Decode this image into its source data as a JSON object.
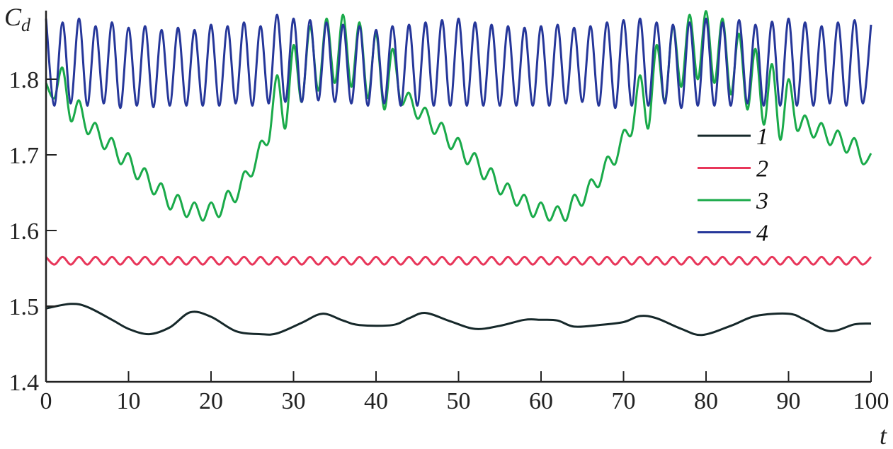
{
  "chart_data": {
    "type": "line",
    "title": "",
    "xlabel": "t",
    "ylabel": "C_d",
    "ylabel_main": "C",
    "ylabel_sub": "d",
    "xlim": [
      0,
      100
    ],
    "ylim": [
      1.4,
      1.89
    ],
    "xticks": [
      "0",
      "10",
      "20",
      "30",
      "40",
      "50",
      "60",
      "70",
      "80",
      "90",
      "100"
    ],
    "yticks": [
      "1.4",
      "1.5",
      "1.6",
      "1.7",
      "1.8"
    ],
    "grid": false,
    "legend_placement": "right",
    "series": [
      {
        "name": "1",
        "color": "#16282a",
        "x": [
          0,
          3,
          5,
          8,
          10,
          12.5,
          15,
          17.5,
          20,
          23,
          26,
          28,
          31,
          33.5,
          36,
          38,
          42,
          44,
          46,
          49,
          52,
          55,
          58,
          60,
          62,
          64,
          67,
          70,
          72,
          74,
          77,
          79.5,
          83,
          86,
          90,
          92,
          95,
          98,
          100
        ],
        "y": [
          1.497,
          1.503,
          1.499,
          1.482,
          1.47,
          1.463,
          1.472,
          1.492,
          1.486,
          1.467,
          1.463,
          1.464,
          1.478,
          1.49,
          1.481,
          1.475,
          1.475,
          1.484,
          1.491,
          1.48,
          1.47,
          1.474,
          1.482,
          1.482,
          1.481,
          1.473,
          1.475,
          1.479,
          1.487,
          1.484,
          1.47,
          1.462,
          1.474,
          1.487,
          1.49,
          1.482,
          1.467,
          1.476,
          1.477
        ]
      },
      {
        "name": "2",
        "color": "#e8365a",
        "x_start": 0,
        "x_step": 1,
        "y": [
          1.565,
          1.555,
          1.565,
          1.555,
          1.565,
          1.555,
          1.565,
          1.555,
          1.565,
          1.555,
          1.565,
          1.555,
          1.565,
          1.555,
          1.565,
          1.555,
          1.565,
          1.555,
          1.565,
          1.555,
          1.565,
          1.555,
          1.565,
          1.555,
          1.565,
          1.555,
          1.565,
          1.555,
          1.565,
          1.555,
          1.565,
          1.555,
          1.565,
          1.555,
          1.565,
          1.555,
          1.565,
          1.555,
          1.565,
          1.555,
          1.565,
          1.555,
          1.565,
          1.555,
          1.565,
          1.555,
          1.565,
          1.555,
          1.565,
          1.555,
          1.565,
          1.555,
          1.565,
          1.555,
          1.565,
          1.555,
          1.565,
          1.555,
          1.565,
          1.555,
          1.565,
          1.555,
          1.565,
          1.555,
          1.565,
          1.555,
          1.565,
          1.555,
          1.565,
          1.555,
          1.565,
          1.555,
          1.565,
          1.555,
          1.565,
          1.555,
          1.565,
          1.555,
          1.565,
          1.555,
          1.565,
          1.555,
          1.565,
          1.555,
          1.565,
          1.555,
          1.565,
          1.555,
          1.565,
          1.555,
          1.565,
          1.555,
          1.565,
          1.555,
          1.565,
          1.555,
          1.565,
          1.555,
          1.565,
          1.555,
          1.565
        ]
      },
      {
        "name": "3",
        "color": "#1aaa4a",
        "x_start": 0,
        "x_step": 1,
        "y": [
          1.795,
          1.775,
          1.815,
          1.745,
          1.772,
          1.728,
          1.742,
          1.708,
          1.722,
          1.688,
          1.702,
          1.668,
          1.682,
          1.648,
          1.662,
          1.628,
          1.647,
          1.618,
          1.637,
          1.613,
          1.637,
          1.618,
          1.652,
          1.638,
          1.677,
          1.673,
          1.717,
          1.718,
          1.805,
          1.735,
          1.845,
          1.77,
          1.87,
          1.785,
          1.88,
          1.795,
          1.885,
          1.79,
          1.875,
          1.775,
          1.86,
          1.76,
          1.84,
          1.768,
          1.782,
          1.748,
          1.762,
          1.728,
          1.742,
          1.708,
          1.722,
          1.688,
          1.702,
          1.668,
          1.682,
          1.648,
          1.662,
          1.633,
          1.647,
          1.618,
          1.637,
          1.613,
          1.632,
          1.613,
          1.647,
          1.633,
          1.667,
          1.658,
          1.697,
          1.688,
          1.732,
          1.728,
          1.805,
          1.735,
          1.845,
          1.77,
          1.87,
          1.79,
          1.885,
          1.8,
          1.89,
          1.795,
          1.88,
          1.78,
          1.86,
          1.76,
          1.84,
          1.74,
          1.82,
          1.72,
          1.8,
          1.733,
          1.752,
          1.723,
          1.742,
          1.713,
          1.732,
          1.703,
          1.722,
          1.688,
          1.702
        ]
      },
      {
        "name": "4",
        "color": "#26379a",
        "x_start": 0,
        "x_step": 1,
        "y": [
          1.88,
          1.765,
          1.875,
          1.768,
          1.88,
          1.765,
          1.87,
          1.768,
          1.875,
          1.762,
          1.868,
          1.765,
          1.87,
          1.763,
          1.865,
          1.765,
          1.868,
          1.765,
          1.865,
          1.765,
          1.872,
          1.765,
          1.87,
          1.768,
          1.875,
          1.765,
          1.87,
          1.768,
          1.885,
          1.77,
          1.88,
          1.77,
          1.878,
          1.772,
          1.875,
          1.77,
          1.872,
          1.768,
          1.87,
          1.765,
          1.865,
          1.768,
          1.87,
          1.765,
          1.872,
          1.765,
          1.875,
          1.765,
          1.878,
          1.765,
          1.88,
          1.765,
          1.875,
          1.765,
          1.872,
          1.765,
          1.87,
          1.765,
          1.868,
          1.765,
          1.87,
          1.765,
          1.872,
          1.768,
          1.868,
          1.77,
          1.87,
          1.765,
          1.875,
          1.762,
          1.878,
          1.765,
          1.88,
          1.765,
          1.875,
          1.768,
          1.872,
          1.762,
          1.875,
          1.765,
          1.88,
          1.765,
          1.875,
          1.765,
          1.878,
          1.768,
          1.872,
          1.765,
          1.876,
          1.765,
          1.88,
          1.765,
          1.875,
          1.765,
          1.87,
          1.768,
          1.875,
          1.765,
          1.878,
          1.768,
          1.872
        ]
      }
    ]
  }
}
